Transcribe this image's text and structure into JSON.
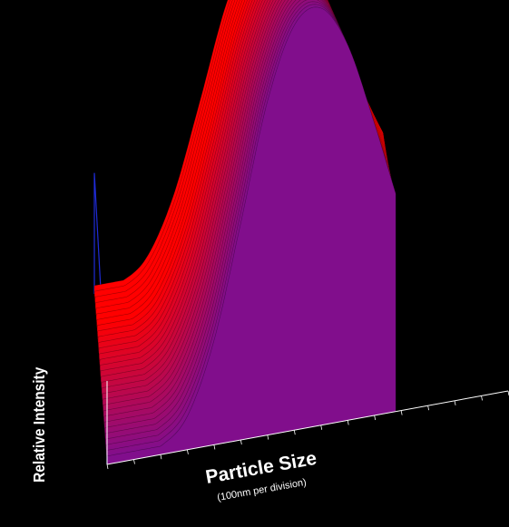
{
  "chart_data": {
    "type": "area",
    "subtype": "3d-waterfall-surface",
    "title": "",
    "xlabel": "Particle Size",
    "xlabel_sub": "(100nm per division)",
    "ylabel": "Relative Intensity",
    "grid": false,
    "legend": "none",
    "colors": {
      "background": "#000000",
      "low": "#1a1aff",
      "high": "#ff0000",
      "axis": "#ffffff",
      "frame": "#1f2bd8"
    },
    "x": [
      0,
      100,
      200,
      300,
      400,
      500,
      600,
      700,
      800,
      900,
      1000,
      1100,
      1200,
      1300,
      1400,
      1500
    ],
    "series": [
      {
        "values": [
          0.0,
          0.0,
          0.02,
          0.08,
          0.25,
          0.52,
          0.8,
          0.97,
          1.0,
          0.9,
          0.7,
          0.48,
          0.3,
          0.16,
          0.07,
          0.03
        ]
      }
    ],
    "ylim": [
      0,
      1
    ]
  }
}
